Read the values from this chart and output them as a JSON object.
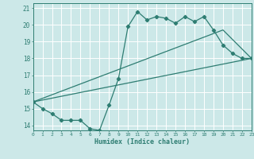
{
  "xlabel": "Humidex (Indice chaleur)",
  "ylabel": "",
  "bg_color": "#cce8e8",
  "grid_color": "#ffffff",
  "line_color": "#2e7d72",
  "xlim": [
    0,
    23
  ],
  "ylim": [
    13.7,
    21.3
  ],
  "xticks": [
    0,
    1,
    2,
    3,
    4,
    5,
    6,
    7,
    8,
    9,
    10,
    11,
    12,
    13,
    14,
    15,
    16,
    17,
    18,
    19,
    20,
    21,
    22,
    23
  ],
  "yticks": [
    14,
    15,
    16,
    17,
    18,
    19,
    20,
    21
  ],
  "line1_x": [
    0,
    1,
    2,
    3,
    4,
    5,
    6,
    7,
    8,
    9,
    10,
    11,
    12,
    13,
    14,
    15,
    16,
    17,
    18,
    19,
    20,
    21,
    22,
    23
  ],
  "line1_y": [
    15.4,
    15.0,
    14.7,
    14.3,
    14.3,
    14.3,
    13.8,
    13.7,
    15.2,
    16.8,
    19.9,
    20.8,
    20.3,
    20.5,
    20.4,
    20.1,
    20.5,
    20.2,
    20.5,
    19.7,
    18.8,
    18.3,
    18.0,
    18.0
  ],
  "line2_x": [
    0,
    23
  ],
  "line2_y": [
    15.4,
    18.0
  ],
  "line3_x": [
    0,
    20,
    23
  ],
  "line3_y": [
    15.4,
    19.7,
    18.0
  ]
}
